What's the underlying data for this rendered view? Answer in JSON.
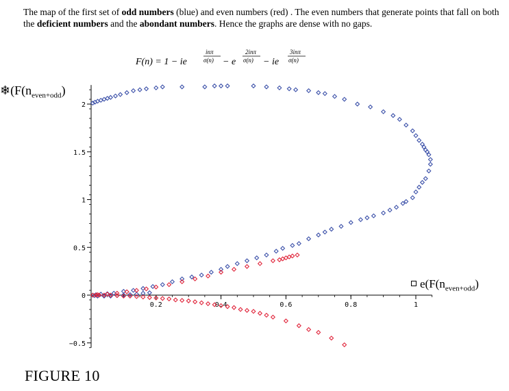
{
  "caption": {
    "t1": "The map of the first set of ",
    "b1": "odd numbers",
    "t2": " (blue) and even numbers (red) . The even numbers that  generate points that fall on both the ",
    "b2": "deficient numbers",
    "t3": " and the ",
    "b3": "abondant numbers",
    "t4": ".  Hence the graphs are dense with no gaps."
  },
  "formula": {
    "lhs": "F(n) = 1 − ie",
    "e1_num": "inπ",
    "e1_den": "σ(n)",
    "mid": " − e",
    "e2_num": "2inπ",
    "e2_den": "σ(n)",
    "mid2": " − ie",
    "e3_num": "3inπ",
    "e3_den": "σ(n)"
  },
  "y_axis_label": {
    "prefix": "❄(F(n",
    "sub": "even+odd",
    "suffix": ")"
  },
  "x_axis_label": {
    "prefix": "e(F(n",
    "sub": "even+odd",
    "suffix": ")"
  },
  "figure_label": "FIGURE 10",
  "chart_data": {
    "type": "scatter",
    "xlim": [
      0,
      1.05
    ],
    "ylim": [
      -0.55,
      2.2
    ],
    "x_ticks": [
      "0.2",
      "0.4",
      "0.6",
      "0.8",
      "1"
    ],
    "x_tick_values": [
      0.2,
      0.4,
      0.6,
      0.8,
      1.0
    ],
    "y_ticks": [
      "−0.5",
      "0",
      "0.5",
      "1",
      "1.5",
      "2"
    ],
    "y_tick_values": [
      -0.5,
      0,
      0.5,
      1.0,
      1.5,
      2.0
    ],
    "series": [
      {
        "color": "#3a4fa8",
        "points": [
          [
            0.005,
            2.01
          ],
          [
            0.012,
            2.02
          ],
          [
            0.02,
            2.03
          ],
          [
            0.03,
            2.04
          ],
          [
            0.04,
            2.05
          ],
          [
            0.05,
            2.06
          ],
          [
            0.06,
            2.07
          ],
          [
            0.075,
            2.085
          ],
          [
            0.09,
            2.1
          ],
          [
            0.11,
            2.12
          ],
          [
            0.13,
            2.14
          ],
          [
            0.15,
            2.15
          ],
          [
            0.17,
            2.16
          ],
          [
            0.2,
            2.17
          ],
          [
            0.22,
            2.18
          ],
          [
            0.28,
            2.18
          ],
          [
            0.35,
            2.18
          ],
          [
            0.38,
            2.19
          ],
          [
            0.4,
            2.19
          ],
          [
            0.42,
            2.19
          ],
          [
            0.5,
            2.19
          ],
          [
            0.54,
            2.18
          ],
          [
            0.58,
            2.17
          ],
          [
            0.61,
            2.16
          ],
          [
            0.63,
            2.15
          ],
          [
            0.67,
            2.14
          ],
          [
            0.7,
            2.12
          ],
          [
            0.72,
            2.11
          ],
          [
            0.75,
            2.08
          ],
          [
            0.78,
            2.05
          ],
          [
            0.82,
            2.0
          ],
          [
            0.86,
            1.97
          ],
          [
            0.9,
            1.92
          ],
          [
            0.93,
            1.88
          ],
          [
            0.95,
            1.84
          ],
          [
            0.97,
            1.78
          ],
          [
            0.99,
            1.72
          ],
          [
            1.0,
            1.67
          ],
          [
            1.01,
            1.62
          ],
          [
            1.02,
            1.58
          ],
          [
            1.025,
            1.55
          ],
          [
            1.03,
            1.52
          ],
          [
            1.035,
            1.5
          ],
          [
            1.04,
            1.47
          ],
          [
            1.045,
            1.42
          ],
          [
            1.045,
            1.37
          ],
          [
            1.04,
            1.3
          ],
          [
            1.03,
            1.22
          ],
          [
            1.02,
            1.18
          ],
          [
            1.01,
            1.13
          ],
          [
            1.0,
            1.08
          ],
          [
            0.99,
            1.02
          ],
          [
            0.97,
            0.98
          ],
          [
            0.96,
            0.96
          ],
          [
            0.94,
            0.92
          ],
          [
            0.92,
            0.89
          ],
          [
            0.9,
            0.86
          ],
          [
            0.87,
            0.83
          ],
          [
            0.85,
            0.81
          ],
          [
            0.83,
            0.79
          ],
          [
            0.8,
            0.76
          ],
          [
            0.77,
            0.72
          ],
          [
            0.74,
            0.69
          ],
          [
            0.72,
            0.66
          ],
          [
            0.7,
            0.63
          ],
          [
            0.67,
            0.59
          ],
          [
            0.64,
            0.54
          ],
          [
            0.62,
            0.52
          ],
          [
            0.59,
            0.49
          ],
          [
            0.57,
            0.46
          ],
          [
            0.54,
            0.42
          ],
          [
            0.51,
            0.39
          ],
          [
            0.48,
            0.36
          ],
          [
            0.45,
            0.33
          ],
          [
            0.42,
            0.3
          ],
          [
            0.4,
            0.27
          ],
          [
            0.37,
            0.24
          ],
          [
            0.34,
            0.21
          ],
          [
            0.31,
            0.19
          ],
          [
            0.28,
            0.17
          ],
          [
            0.25,
            0.14
          ],
          [
            0.22,
            0.11
          ],
          [
            0.19,
            0.09
          ],
          [
            0.16,
            0.07
          ],
          [
            0.13,
            0.05
          ],
          [
            0.1,
            0.04
          ],
          [
            0.07,
            0.02
          ],
          [
            0.05,
            0.015
          ],
          [
            0.03,
            0.01
          ],
          [
            0.015,
            0.005
          ],
          [
            0.005,
            0.0
          ],
          [
            0.01,
            -0.005
          ],
          [
            0.02,
            -0.01
          ],
          [
            0.04,
            -0.01
          ],
          [
            0.06,
            -0.01
          ],
          [
            0.08,
            -0.005
          ],
          [
            0.1,
            0.0
          ],
          [
            0.12,
            0.005
          ],
          [
            0.14,
            0.01
          ],
          [
            0.16,
            0.02
          ],
          [
            0.18,
            0.025
          ]
        ]
      },
      {
        "color": "#e0243a",
        "points": [
          [
            0.005,
            0.0
          ],
          [
            0.015,
            0.0
          ],
          [
            0.025,
            0.0
          ],
          [
            0.04,
            0.0
          ],
          [
            0.06,
            0.0
          ],
          [
            0.08,
            -0.005
          ],
          [
            0.1,
            -0.01
          ],
          [
            0.12,
            -0.01
          ],
          [
            0.14,
            -0.015
          ],
          [
            0.16,
            -0.02
          ],
          [
            0.18,
            -0.025
          ],
          [
            0.2,
            -0.03
          ],
          [
            0.22,
            -0.035
          ],
          [
            0.24,
            -0.04
          ],
          [
            0.26,
            -0.05
          ],
          [
            0.28,
            -0.055
          ],
          [
            0.3,
            -0.06
          ],
          [
            0.32,
            -0.07
          ],
          [
            0.34,
            -0.08
          ],
          [
            0.36,
            -0.09
          ],
          [
            0.38,
            -0.1
          ],
          [
            0.4,
            -0.11
          ],
          [
            0.42,
            -0.12
          ],
          [
            0.44,
            -0.13
          ],
          [
            0.46,
            -0.15
          ],
          [
            0.48,
            -0.16
          ],
          [
            0.5,
            -0.17
          ],
          [
            0.52,
            -0.19
          ],
          [
            0.54,
            -0.21
          ],
          [
            0.56,
            -0.23
          ],
          [
            0.6,
            -0.27
          ],
          [
            0.64,
            -0.32
          ],
          [
            0.67,
            -0.36
          ],
          [
            0.7,
            -0.39
          ],
          [
            0.74,
            -0.45
          ],
          [
            0.78,
            -0.52
          ],
          [
            0.02,
            0.005
          ],
          [
            0.05,
            0.01
          ],
          [
            0.08,
            0.02
          ],
          [
            0.11,
            0.035
          ],
          [
            0.14,
            0.05
          ],
          [
            0.17,
            0.065
          ],
          [
            0.2,
            0.085
          ],
          [
            0.24,
            0.11
          ],
          [
            0.28,
            0.14
          ],
          [
            0.32,
            0.17
          ],
          [
            0.36,
            0.2
          ],
          [
            0.4,
            0.24
          ],
          [
            0.44,
            0.27
          ],
          [
            0.48,
            0.3
          ],
          [
            0.52,
            0.33
          ],
          [
            0.56,
            0.36
          ],
          [
            0.58,
            0.37
          ],
          [
            0.59,
            0.38
          ],
          [
            0.6,
            0.39
          ],
          [
            0.61,
            0.4
          ],
          [
            0.62,
            0.41
          ],
          [
            0.635,
            0.42
          ]
        ]
      }
    ]
  }
}
